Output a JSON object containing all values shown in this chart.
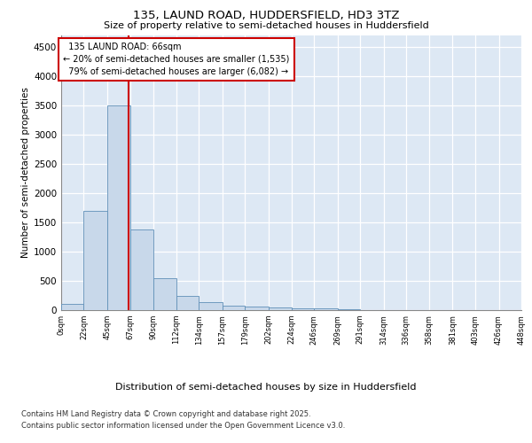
{
  "title1": "135, LAUND ROAD, HUDDERSFIELD, HD3 3TZ",
  "title2": "Size of property relative to semi-detached houses in Huddersfield",
  "xlabel": "Distribution of semi-detached houses by size in Huddersfield",
  "ylabel": "Number of semi-detached properties",
  "property_size": 66,
  "property_label": "135 LAUND ROAD: 66sqm",
  "pct_smaller": 20,
  "pct_larger": 79,
  "count_smaller": 1535,
  "count_larger": 6082,
  "bar_color": "#c8d8ea",
  "bar_edge_color": "#6090b8",
  "vline_color": "#cc0000",
  "annotation_box_color": "#cc0000",
  "bg_color": "#dde8f4",
  "bins": [
    0,
    22,
    45,
    67,
    90,
    112,
    134,
    157,
    179,
    202,
    224,
    246,
    269,
    291,
    314,
    336,
    358,
    381,
    403,
    426,
    448
  ],
  "bin_labels": [
    "0sqm",
    "22sqm",
    "45sqm",
    "67sqm",
    "90sqm",
    "112sqm",
    "134sqm",
    "157sqm",
    "179sqm",
    "202sqm",
    "224sqm",
    "246sqm",
    "269sqm",
    "291sqm",
    "314sqm",
    "336sqm",
    "358sqm",
    "381sqm",
    "403sqm",
    "426sqm",
    "448sqm"
  ],
  "bar_heights": [
    100,
    1700,
    3500,
    1380,
    550,
    240,
    135,
    80,
    60,
    40,
    35,
    25,
    20,
    0,
    0,
    0,
    0,
    0,
    0,
    0
  ],
  "ylim": [
    0,
    4700
  ],
  "yticks": [
    0,
    500,
    1000,
    1500,
    2000,
    2500,
    3000,
    3500,
    4000,
    4500
  ],
  "footer1": "Contains HM Land Registry data © Crown copyright and database right 2025.",
  "footer2": "Contains public sector information licensed under the Open Government Licence v3.0."
}
